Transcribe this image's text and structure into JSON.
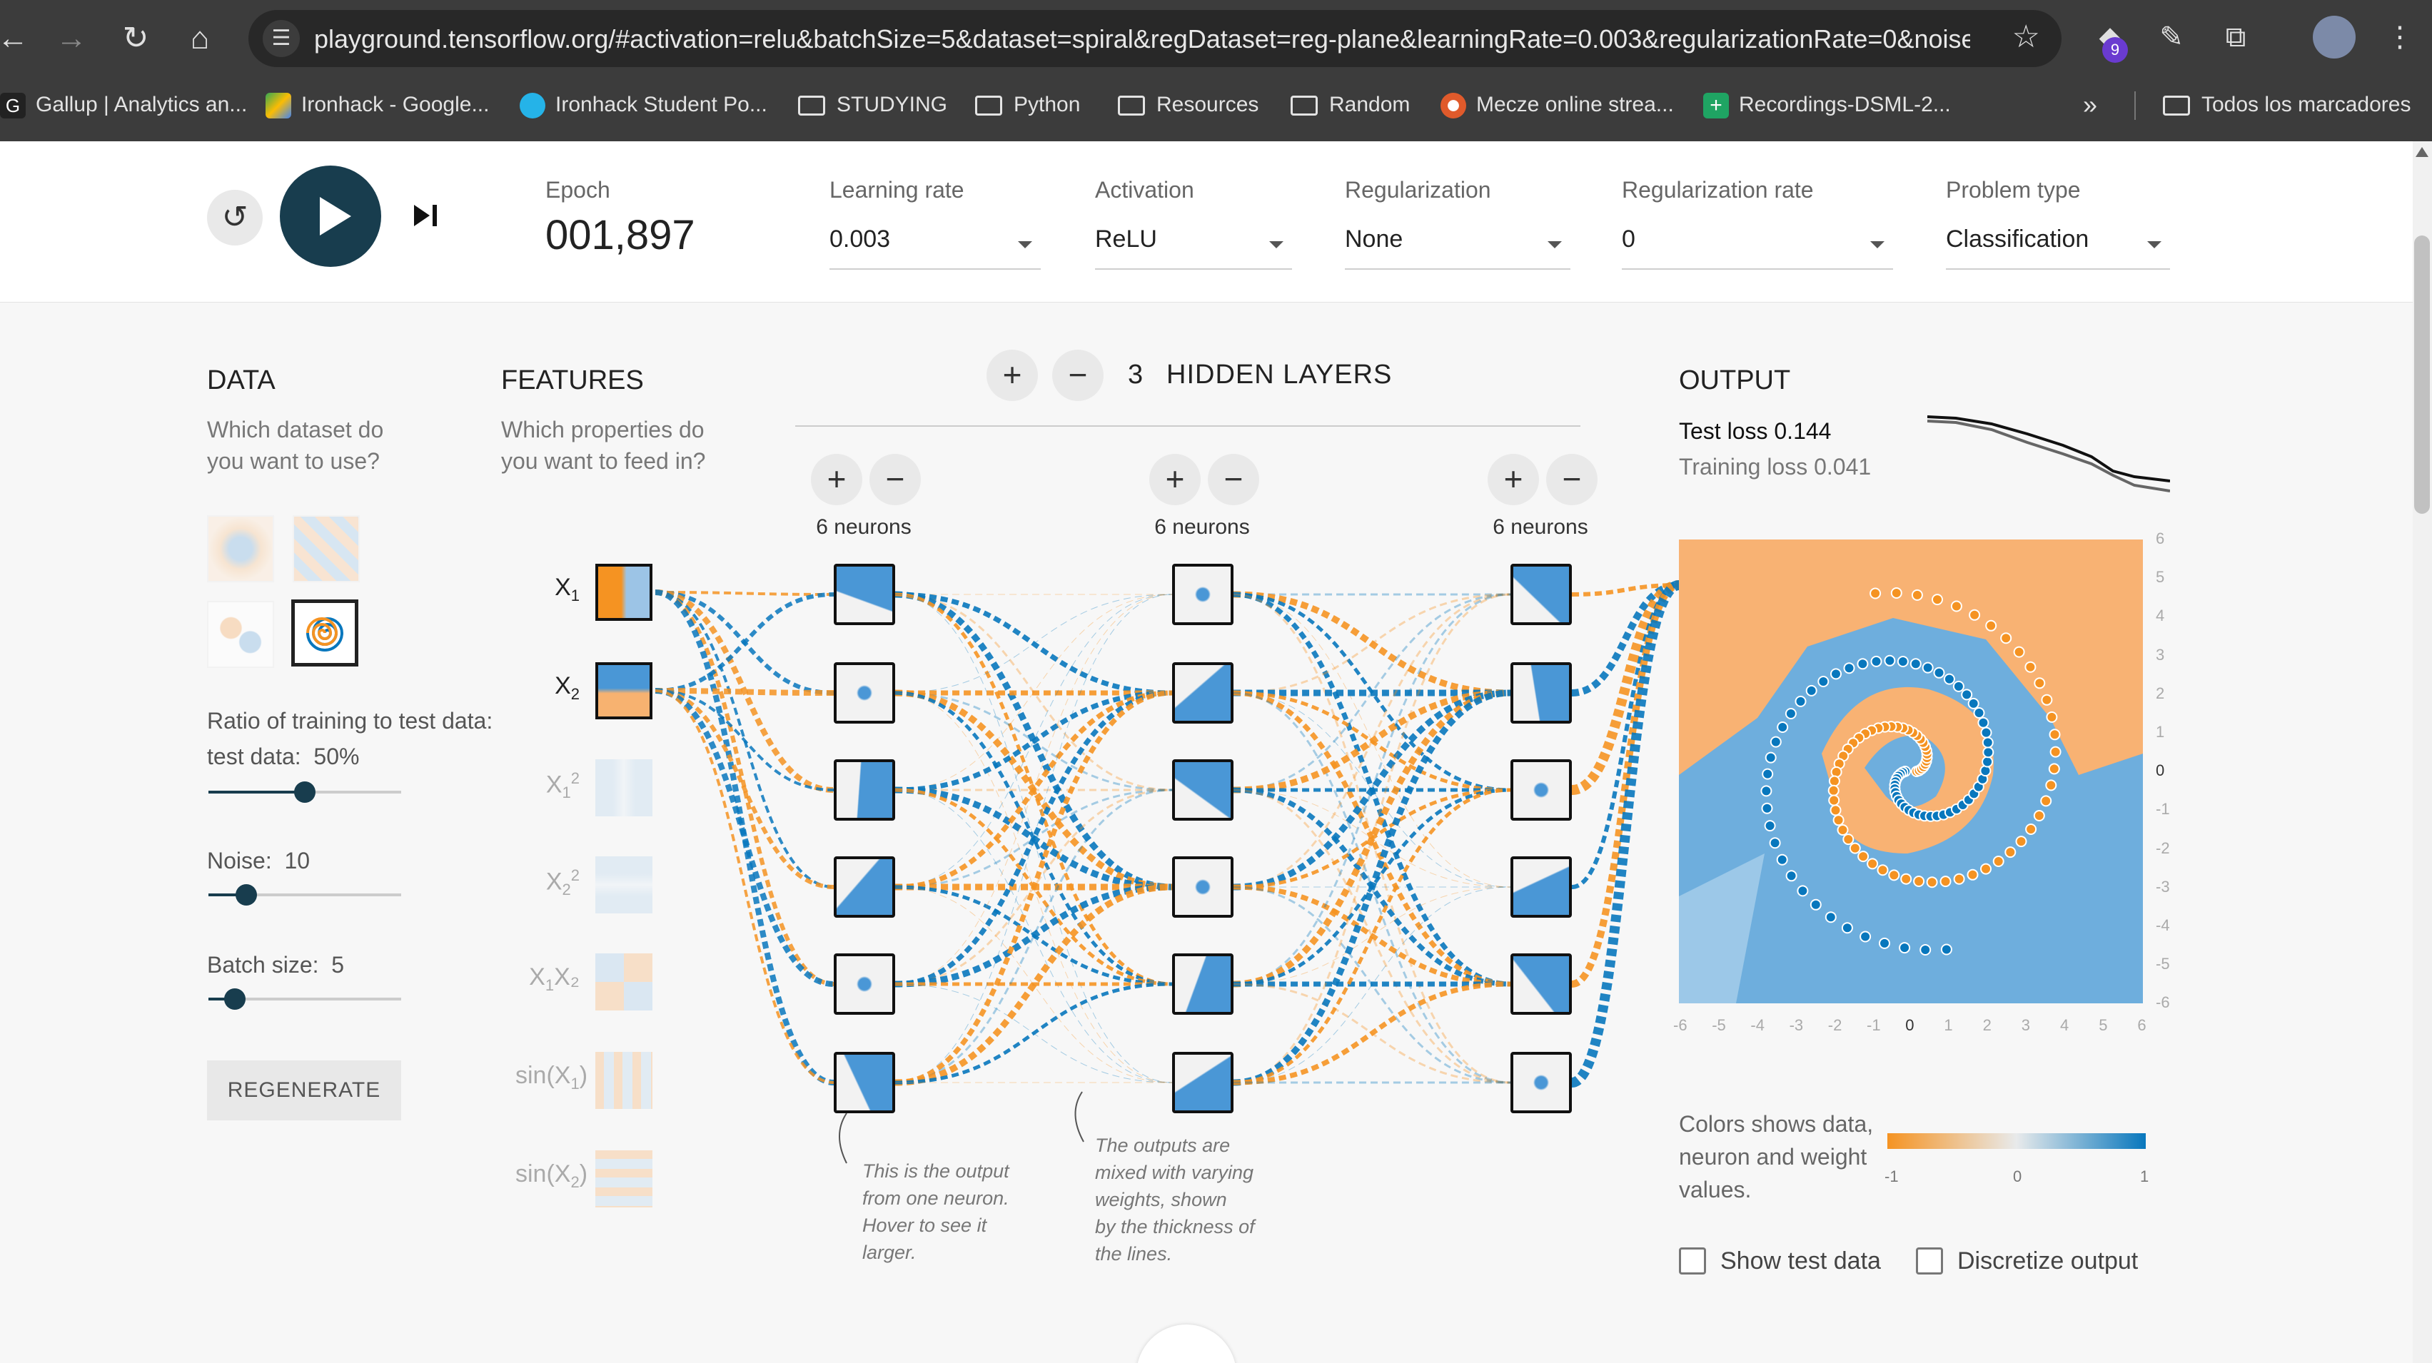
{
  "browser": {
    "url": "playground.tensorflow.org/#activation=relu&batchSize=5&dataset=spiral&regDataset=reg-plane&learningRate=0.003&regularizationRate=0&noise=...",
    "extension_badge": "9",
    "bookmarks": [
      {
        "label": "Gallup | Analytics an...",
        "icon": "gallup-icon"
      },
      {
        "label": "Ironhack - Google...",
        "icon": "google-drive-icon"
      },
      {
        "label": "Ironhack Student Po...",
        "icon": "ironhack-icon"
      },
      {
        "label": "STUDYING",
        "icon": "folder-icon"
      },
      {
        "label": "Python",
        "icon": "folder-icon"
      },
      {
        "label": "Resources",
        "icon": "folder-icon"
      },
      {
        "label": "Random",
        "icon": "folder-icon"
      },
      {
        "label": "Mecze online strea...",
        "icon": "football-icon"
      },
      {
        "label": "Recordings-DSML-2...",
        "icon": "plus-sheet-icon"
      }
    ],
    "overflow_label": "»",
    "all_bookmarks": "Todos los marcadores"
  },
  "controls": {
    "epoch_label": "Epoch",
    "epoch_value": "001,897",
    "learning_rate_label": "Learning rate",
    "learning_rate": "0.003",
    "activation_label": "Activation",
    "activation": "ReLU",
    "regularization_label": "Regularization",
    "regularization": "None",
    "reg_rate_label": "Regularization rate",
    "reg_rate": "0",
    "problem_type_label": "Problem type",
    "problem_type": "Classification"
  },
  "data_panel": {
    "title": "DATA",
    "subtitle": "Which dataset do you want to use?",
    "ratio_label": "Ratio of training to test data:",
    "ratio_value": "50%",
    "ratio_fraction": 0.5,
    "noise_label": "Noise:",
    "noise_value": "10",
    "noise_fraction": 0.2,
    "batch_label": "Batch size:",
    "batch_value": "5",
    "batch_fraction": 0.14,
    "regenerate": "REGENERATE"
  },
  "features_panel": {
    "title": "FEATURES",
    "subtitle": "Which properties do you want to feed in?",
    "features": [
      {
        "base": "X",
        "sub": "1",
        "sup": "",
        "tail": "",
        "active": true
      },
      {
        "base": "X",
        "sub": "2",
        "sup": "",
        "tail": "",
        "active": true
      },
      {
        "base": "X",
        "sub": "1",
        "sup": "2",
        "tail": "",
        "active": false
      },
      {
        "base": "X",
        "sub": "2",
        "sup": "2",
        "tail": "",
        "active": false
      },
      {
        "base": "X",
        "sub": "1",
        "sup": "",
        "tail": "X₂",
        "active": false
      },
      {
        "base": "sin(X",
        "sub": "1",
        "sup": "",
        "tail": ")",
        "active": false
      },
      {
        "base": "sin(X",
        "sub": "2",
        "sup": "",
        "tail": ")",
        "active": false
      }
    ]
  },
  "network": {
    "hidden_count": "3",
    "hidden_title": "HIDDEN LAYERS",
    "layers": [
      {
        "neurons_label": "6 neurons"
      },
      {
        "neurons_label": "6 neurons"
      },
      {
        "neurons_label": "6 neurons"
      }
    ],
    "note_neuron": [
      "This is the output",
      "from one neuron.",
      "Hover to see it",
      "larger."
    ],
    "note_weights": [
      "The outputs are",
      "mixed with varying",
      "weights, shown",
      "by the thickness of",
      "the lines."
    ]
  },
  "output_panel": {
    "title": "OUTPUT",
    "test_loss": "Test loss 0.144",
    "training_loss": "Training loss 0.041",
    "x_ticks": [
      "-6",
      "-5",
      "-4",
      "-3",
      "-2",
      "-1",
      "0",
      "1",
      "2",
      "3",
      "4",
      "5",
      "6"
    ],
    "y_ticks": [
      "6",
      "5",
      "4",
      "3",
      "2",
      "1",
      "0",
      "-1",
      "-2",
      "-3",
      "-4",
      "-5",
      "-6"
    ],
    "legend_text": "Colors shows data, neuron and weight values.",
    "legend_min": "-1",
    "legend_mid": "0",
    "legend_max": "1",
    "show_test_data": "Show test data",
    "discretize_output": "Discretize output"
  },
  "colors": {
    "orange": "#f59322",
    "blue": "#0877bd",
    "dark_button": "#183d4e"
  }
}
